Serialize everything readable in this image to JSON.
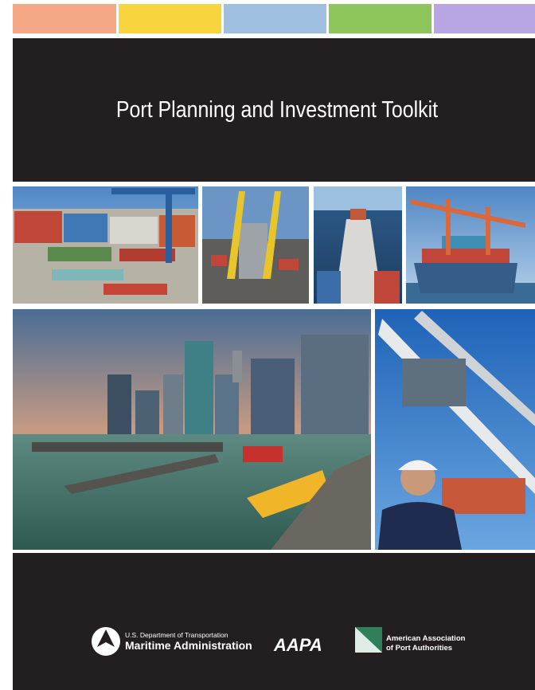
{
  "header": {
    "title": "Port Planning and Investment Toolkit"
  },
  "footer": {
    "marad": {
      "department": "U.S. Department of Transportation",
      "name": "Maritime Administration"
    },
    "aapa": {
      "acronym": "AAPA",
      "name_line1": "American Association",
      "name_line2": "of Port Authorities"
    }
  }
}
